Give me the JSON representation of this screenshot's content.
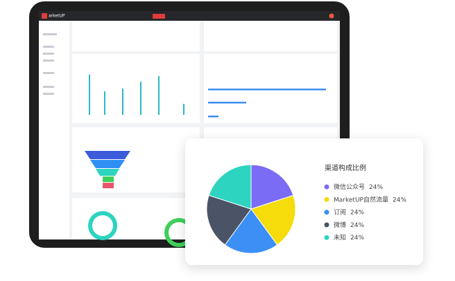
{
  "tablet": {
    "logo": "arketUP"
  },
  "chart_data": {
    "type": "pie",
    "title": "渠道构成比例",
    "categories": [
      "微信公众号",
      "MarketUP自然流量",
      "订阅",
      "微博",
      "未知"
    ],
    "values": [
      24,
      24,
      24,
      24,
      24
    ],
    "value_labels": [
      "24%",
      "24%",
      "24%",
      "24%",
      "24%"
    ],
    "colors": [
      "#7b6cf6",
      "#f5dc0a",
      "#3b8ff5",
      "#4a5466",
      "#2dd4bf"
    ]
  }
}
